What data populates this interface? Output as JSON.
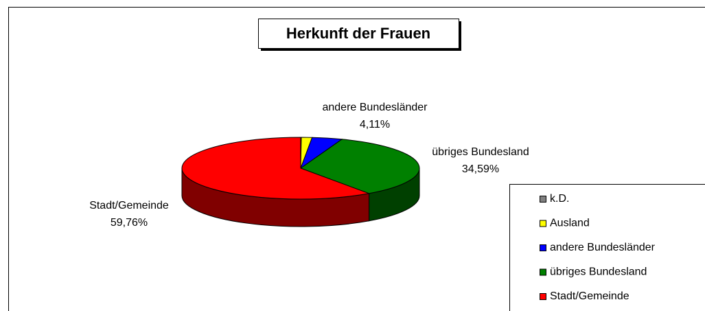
{
  "chart_data": {
    "type": "pie3d",
    "title": "Herkunft der Frauen",
    "categories": [
      "k.D.",
      "Ausland",
      "andere Bundesländer",
      "übriges Bundesland",
      "Stadt/Gemeinde"
    ],
    "values": [
      0.09,
      1.45,
      4.11,
      34.59,
      59.76
    ],
    "value_labels": [
      null,
      null,
      "4,11%",
      "34,59%",
      "59,76%"
    ],
    "colors": [
      "#808080",
      "#ffff00",
      "#0000ff",
      "#008000",
      "#ff0000"
    ],
    "legend": "right"
  }
}
